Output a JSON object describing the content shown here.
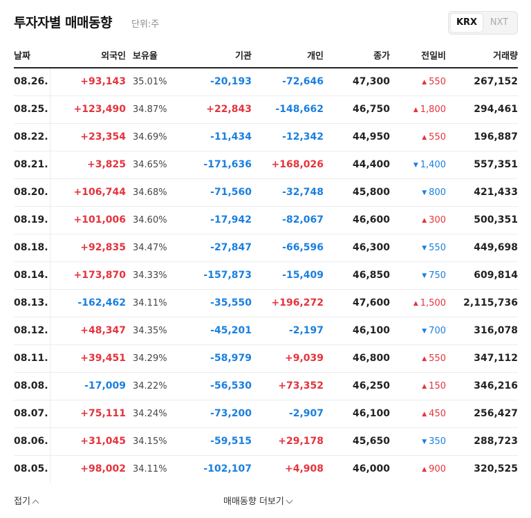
{
  "header": {
    "title": "투자자별 매매동향",
    "unit": "단위:주",
    "market_tabs": [
      {
        "label": "KRX",
        "active": true
      },
      {
        "label": "NXT",
        "active": false
      }
    ]
  },
  "columns": [
    "날짜",
    "외국인",
    "보유율",
    "기관",
    "개인",
    "종가",
    "전일비",
    "거래량"
  ],
  "rows": [
    {
      "date": "08.26.",
      "foreign": "+93,143",
      "ratio": "35.01%",
      "inst": "-20,193",
      "indiv": "-72,646",
      "close": "47,300",
      "dir": "up",
      "change": "550",
      "volume": "267,152"
    },
    {
      "date": "08.25.",
      "foreign": "+123,490",
      "ratio": "34.87%",
      "inst": "+22,843",
      "indiv": "-148,662",
      "close": "46,750",
      "dir": "up",
      "change": "1,800",
      "volume": "294,461"
    },
    {
      "date": "08.22.",
      "foreign": "+23,354",
      "ratio": "34.69%",
      "inst": "-11,434",
      "indiv": "-12,342",
      "close": "44,950",
      "dir": "up",
      "change": "550",
      "volume": "196,887"
    },
    {
      "date": "08.21.",
      "foreign": "+3,825",
      "ratio": "34.65%",
      "inst": "-171,636",
      "indiv": "+168,026",
      "close": "44,400",
      "dir": "down",
      "change": "1,400",
      "volume": "557,351"
    },
    {
      "date": "08.20.",
      "foreign": "+106,744",
      "ratio": "34.68%",
      "inst": "-71,560",
      "indiv": "-32,748",
      "close": "45,800",
      "dir": "down",
      "change": "800",
      "volume": "421,433"
    },
    {
      "date": "08.19.",
      "foreign": "+101,006",
      "ratio": "34.60%",
      "inst": "-17,942",
      "indiv": "-82,067",
      "close": "46,600",
      "dir": "up",
      "change": "300",
      "volume": "500,351"
    },
    {
      "date": "08.18.",
      "foreign": "+92,835",
      "ratio": "34.47%",
      "inst": "-27,847",
      "indiv": "-66,596",
      "close": "46,300",
      "dir": "down",
      "change": "550",
      "volume": "449,698"
    },
    {
      "date": "08.14.",
      "foreign": "+173,870",
      "ratio": "34.33%",
      "inst": "-157,873",
      "indiv": "-15,409",
      "close": "46,850",
      "dir": "down",
      "change": "750",
      "volume": "609,814"
    },
    {
      "date": "08.13.",
      "foreign": "-162,462",
      "ratio": "34.11%",
      "inst": "-35,550",
      "indiv": "+196,272",
      "close": "47,600",
      "dir": "up",
      "change": "1,500",
      "volume": "2,115,736"
    },
    {
      "date": "08.12.",
      "foreign": "+48,347",
      "ratio": "34.35%",
      "inst": "-45,201",
      "indiv": "-2,197",
      "close": "46,100",
      "dir": "down",
      "change": "700",
      "volume": "316,078"
    },
    {
      "date": "08.11.",
      "foreign": "+39,451",
      "ratio": "34.29%",
      "inst": "-58,979",
      "indiv": "+9,039",
      "close": "46,800",
      "dir": "up",
      "change": "550",
      "volume": "347,112"
    },
    {
      "date": "08.08.",
      "foreign": "-17,009",
      "ratio": "34.22%",
      "inst": "-56,530",
      "indiv": "+73,352",
      "close": "46,250",
      "dir": "up",
      "change": "150",
      "volume": "346,216"
    },
    {
      "date": "08.07.",
      "foreign": "+75,111",
      "ratio": "34.24%",
      "inst": "-73,200",
      "indiv": "-2,907",
      "close": "46,100",
      "dir": "up",
      "change": "450",
      "volume": "256,427"
    },
    {
      "date": "08.06.",
      "foreign": "+31,045",
      "ratio": "34.15%",
      "inst": "-59,515",
      "indiv": "+29,178",
      "close": "45,650",
      "dir": "down",
      "change": "350",
      "volume": "288,723"
    },
    {
      "date": "08.05.",
      "foreign": "+98,002",
      "ratio": "34.11%",
      "inst": "-102,107",
      "indiv": "+4,908",
      "close": "46,000",
      "dir": "up",
      "change": "900",
      "volume": "320,525"
    }
  ],
  "footer": {
    "fold_label": "접기",
    "more_label": "매매동향 더보기"
  },
  "colors": {
    "up": "#e5333c",
    "down": "#1a7fe0"
  },
  "icons": {
    "up_change": "triangle-up-icon",
    "down_change": "triangle-down-icon",
    "fold": "chevron-up-icon",
    "more": "chevron-down-icon"
  }
}
